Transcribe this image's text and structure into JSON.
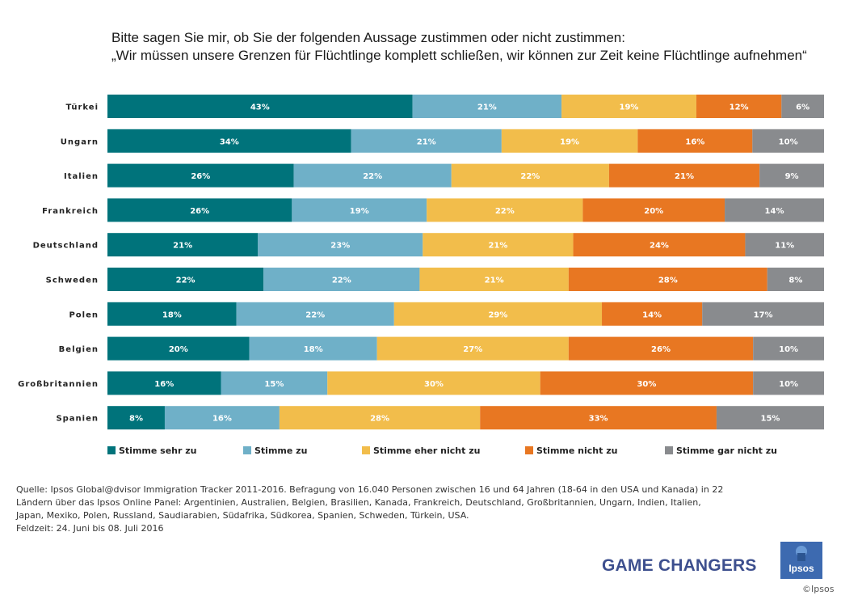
{
  "question": {
    "line1": "Bitte sagen Sie mir, ob Sie der folgenden Aussage zustimmen oder nicht zustimmen:",
    "line2": "„Wir müssen unsere Grenzen für Flüchtlinge komplett schließen, wir können zur Zeit keine Flüchtlinge aufnehmen“"
  },
  "chart_data": {
    "type": "bar",
    "orientation": "horizontal",
    "stacked": true,
    "normalized": true,
    "title": "",
    "xlabel": "",
    "ylabel": "",
    "categories": [
      "Türkei",
      "Ungarn",
      "Italien",
      "Frankreich",
      "Deutschland",
      "Schweden",
      "Polen",
      "Belgien",
      "Großbritannien",
      "Spanien"
    ],
    "series": [
      {
        "name": "Stimme sehr zu",
        "color": "#00737b",
        "values": [
          43,
          34,
          26,
          26,
          21,
          22,
          18,
          20,
          16,
          8
        ]
      },
      {
        "name": "Stimme zu",
        "color": "#6fb0c8",
        "values": [
          21,
          21,
          22,
          19,
          23,
          22,
          22,
          18,
          15,
          16
        ]
      },
      {
        "name": "Stimme eher nicht zu",
        "color": "#f2bd4b",
        "values": [
          19,
          19,
          22,
          22,
          21,
          21,
          29,
          27,
          30,
          28
        ]
      },
      {
        "name": "Stimme nicht zu",
        "color": "#e87722",
        "values": [
          12,
          16,
          21,
          20,
          24,
          28,
          14,
          26,
          30,
          33
        ]
      },
      {
        "name": "Stimme gar nicht zu",
        "color": "#898b8e",
        "values": [
          6,
          10,
          9,
          14,
          11,
          8,
          17,
          10,
          10,
          15
        ]
      }
    ],
    "value_suffix": "%",
    "grid": false,
    "legend_position": "bottom"
  },
  "source": {
    "lines": [
      "Quelle:  Ipsos Global@dvisor  Immigration Tracker 2011-2016.  Befragung von 16.040 Personen  zwischen  16 und  64 Jahren  (18-64 in den USA und Kanada)  in 22",
      "Ländern über das Ipsos Online  Panel:  Argentinien,  Australien, Belgien, Brasilien, Kanada, Frankreich, Deutschland, Großbritannien, Ungarn, Indien, Italien,",
      "Japan, Mexiko, Polen, Russland, Saudiarabien, Südafrika, Südkorea, Spanien, Schweden, Türkein, USA.",
      "Feldzeit: 24. Juni bis 08. Juli 2016"
    ]
  },
  "brand": {
    "tagline": "GAME CHANGERS",
    "logo_text": "Ipsos",
    "copyright": "©Ipsos"
  }
}
